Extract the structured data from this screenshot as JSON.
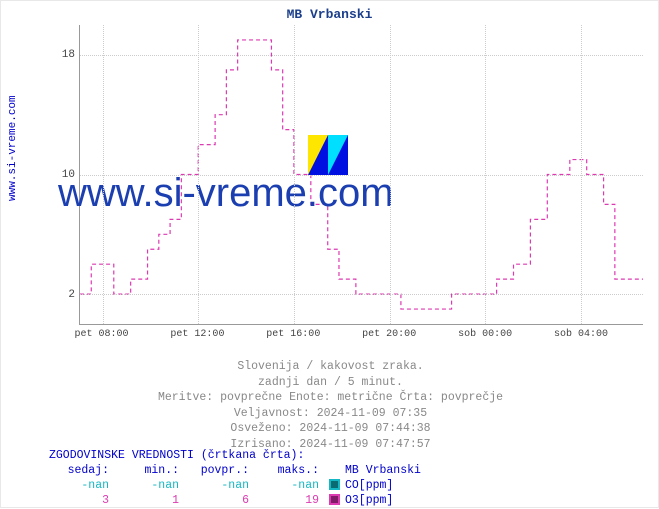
{
  "chart": {
    "title": "MB Vrbanski",
    "title_color": "#1b3f8b",
    "ylabel": "www.si-vreme.com",
    "ylabel_color": "#0000cc",
    "background_color": "#ffffff",
    "grid_color": "#cccccc",
    "axis_color": "#999999",
    "yticks": [
      2,
      10,
      18
    ],
    "ylim": [
      0,
      20
    ],
    "xlabels": [
      "pet 08:00",
      "pet 12:00",
      "pet 16:00",
      "pet 20:00",
      "sob 00:00",
      "sob 04:00"
    ],
    "x_positions_pct": [
      4,
      21,
      38,
      55,
      72,
      89
    ],
    "series": {
      "o3": {
        "color": "#dd3ab2",
        "dash": "4,3",
        "width": 1.2,
        "points": [
          [
            0,
            2
          ],
          [
            2,
            2
          ],
          [
            2,
            4
          ],
          [
            6,
            4
          ],
          [
            6,
            2
          ],
          [
            9,
            2
          ],
          [
            9,
            3
          ],
          [
            12,
            3
          ],
          [
            12,
            5
          ],
          [
            14,
            5
          ],
          [
            14,
            6
          ],
          [
            16,
            6
          ],
          [
            16,
            7
          ],
          [
            18,
            7
          ],
          [
            18,
            10
          ],
          [
            21,
            10
          ],
          [
            21,
            12
          ],
          [
            24,
            12
          ],
          [
            24,
            14
          ],
          [
            26,
            14
          ],
          [
            26,
            17
          ],
          [
            28,
            17
          ],
          [
            28,
            19
          ],
          [
            34,
            19
          ],
          [
            34,
            17
          ],
          [
            36,
            17
          ],
          [
            36,
            13
          ],
          [
            38,
            13
          ],
          [
            38,
            10
          ],
          [
            41,
            10
          ],
          [
            41,
            8
          ],
          [
            44,
            8
          ],
          [
            44,
            5
          ],
          [
            46,
            5
          ],
          [
            46,
            3
          ],
          [
            49,
            3
          ],
          [
            49,
            2
          ],
          [
            57,
            2
          ],
          [
            57,
            1
          ],
          [
            66,
            1
          ],
          [
            66,
            2
          ],
          [
            74,
            2
          ],
          [
            74,
            3
          ],
          [
            77,
            3
          ],
          [
            77,
            4
          ],
          [
            80,
            4
          ],
          [
            80,
            7
          ],
          [
            83,
            7
          ],
          [
            83,
            10
          ],
          [
            87,
            10
          ],
          [
            87,
            11
          ],
          [
            90,
            11
          ],
          [
            90,
            10
          ],
          [
            93,
            10
          ],
          [
            93,
            8
          ],
          [
            95,
            8
          ],
          [
            95,
            3
          ],
          [
            100,
            3
          ]
        ]
      },
      "co": {
        "color": "#14b8c4",
        "dash": "4,3",
        "width": 1.2,
        "points": []
      }
    },
    "watermark": {
      "text": "www.si-vreme.com",
      "color": "#1b3fb0",
      "logo_colors": [
        "#0010e0",
        "#ffe600",
        "#00dfff"
      ]
    }
  },
  "meta": {
    "line1": "Slovenija / kakovost zraka.",
    "line2": "zadnji dan / 5 minut.",
    "line3": "Meritve: povprečne  Enote: metrične  Črta: povprečje",
    "line4": "Veljavnost: 2024-11-09 07:35",
    "line5": "Osveženo: 2024-11-09 07:44:38",
    "line6": "Izrisano: 2024-11-09 07:47:57",
    "color": "#888888"
  },
  "history": {
    "title": "ZGODOVINSKE VREDNOSTI (črtkana črta):",
    "header_color": "#0000cc",
    "columns": [
      "sedaj:",
      "min.:",
      "povpr.:",
      "maks.:"
    ],
    "station_label": "MB Vrbanski",
    "rows": [
      {
        "values": [
          "-nan",
          "-nan",
          "-nan",
          "-nan"
        ],
        "text_color": "#14b8c4",
        "swatch_border": "#14b8c4",
        "swatch_fill": "#0b6b72",
        "label": "CO[ppm]"
      },
      {
        "values": [
          "3",
          "1",
          "6",
          "19"
        ],
        "text_color": "#dd3ab2",
        "swatch_border": "#dd3ab2",
        "swatch_fill": "#801b68",
        "label": "O3[ppm]"
      }
    ]
  }
}
